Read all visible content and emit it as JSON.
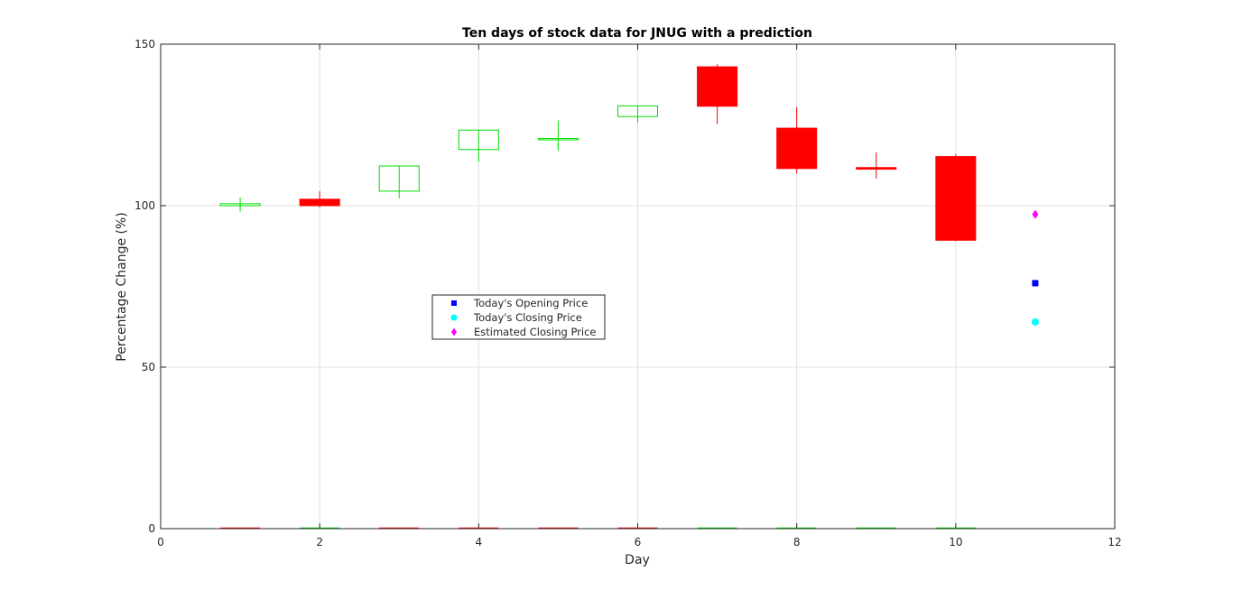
{
  "chart_data": {
    "type": "candlestick",
    "title": "Ten days of stock data for JNUG with a prediction",
    "xlabel": "Day",
    "ylabel": "Percentage Change (%)",
    "xlim": [
      0,
      12
    ],
    "ylim": [
      0,
      150
    ],
    "xticks": [
      0,
      2,
      4,
      6,
      8,
      10,
      12
    ],
    "yticks": [
      0,
      50,
      100,
      150
    ],
    "grid": true,
    "legend_placement": "center-left",
    "colors": {
      "up": "#00dd00",
      "down": "#ff0000",
      "opening": "#0000ff",
      "closing": "#00ffff",
      "estimated": "#ff00ff",
      "grid": "#e0e0e0",
      "axis": "#262626"
    },
    "candles": [
      {
        "day": 1,
        "open": 100.0,
        "close": 100.6,
        "high": 102.5,
        "low": 98.2
      },
      {
        "day": 2,
        "open": 102.0,
        "close": 100.0,
        "high": 104.5,
        "low": 99.5
      },
      {
        "day": 3,
        "open": 104.5,
        "close": 112.3,
        "high": 112.3,
        "low": 102.2
      },
      {
        "day": 4,
        "open": 117.4,
        "close": 123.4,
        "high": 123.4,
        "low": 113.6
      },
      {
        "day": 5,
        "open": 120.4,
        "close": 120.8,
        "high": 126.4,
        "low": 117.0
      },
      {
        "day": 6,
        "open": 127.6,
        "close": 130.9,
        "high": 130.9,
        "low": 125.7
      },
      {
        "day": 7,
        "open": 143.0,
        "close": 130.8,
        "high": 143.8,
        "low": 125.2
      },
      {
        "day": 8,
        "open": 124.0,
        "close": 111.5,
        "high": 130.5,
        "low": 109.9
      },
      {
        "day": 9,
        "open": 111.8,
        "close": 111.3,
        "high": 116.5,
        "low": 108.4
      },
      {
        "day": 10,
        "open": 115.2,
        "close": 89.3,
        "high": 116.0,
        "low": 89.0
      }
    ],
    "baseline_segments": [
      {
        "day": 1,
        "color": "down"
      },
      {
        "day": 2,
        "color": "up"
      },
      {
        "day": 3,
        "color": "down"
      },
      {
        "day": 4,
        "color": "down"
      },
      {
        "day": 5,
        "color": "down"
      },
      {
        "day": 6,
        "color": "down"
      },
      {
        "day": 7,
        "color": "up"
      },
      {
        "day": 8,
        "color": "up"
      },
      {
        "day": 9,
        "color": "up"
      },
      {
        "day": 10,
        "color": "up"
      }
    ],
    "prediction_day": 11,
    "series": [
      {
        "name": "Today's Opening Price",
        "marker": "square",
        "color": "opening",
        "x": 11,
        "y": 76
      },
      {
        "name": "Today's Closing Price",
        "marker": "circle",
        "color": "closing",
        "x": 11,
        "y": 64
      },
      {
        "name": "Estimated Closing Price",
        "marker": "diamond",
        "color": "estimated",
        "x": 11,
        "y": 97.3
      }
    ]
  }
}
